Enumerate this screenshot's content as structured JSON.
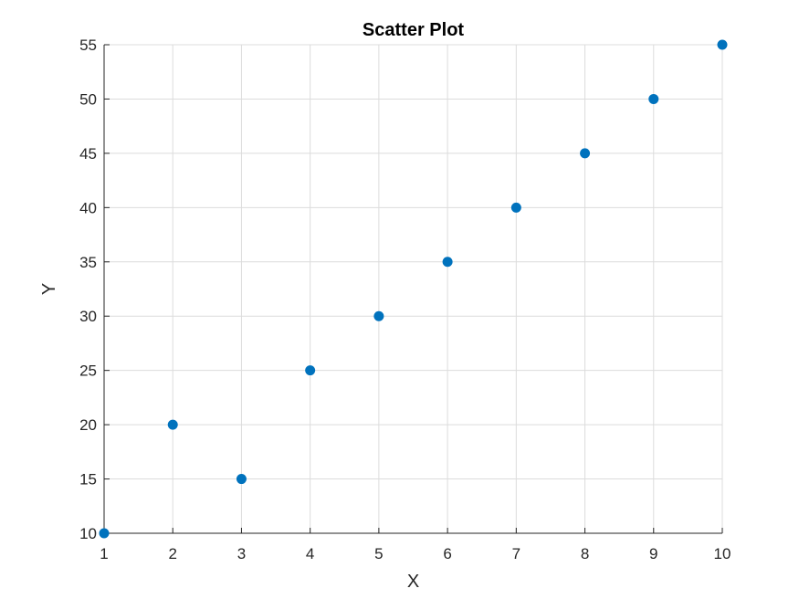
{
  "chart_data": {
    "type": "scatter",
    "title": "Scatter Plot",
    "xlabel": "X",
    "ylabel": "Y",
    "xlim": [
      1,
      10
    ],
    "ylim": [
      10,
      55
    ],
    "xticks": [
      1,
      2,
      3,
      4,
      5,
      6,
      7,
      8,
      9,
      10
    ],
    "yticks": [
      10,
      15,
      20,
      25,
      30,
      35,
      40,
      45,
      50,
      55
    ],
    "grid": true,
    "marker_color": "#0072BD",
    "series": [
      {
        "x": [
          1,
          2,
          3,
          4,
          5,
          6,
          7,
          8,
          9,
          10
        ],
        "y": [
          10,
          20,
          15,
          25,
          30,
          35,
          40,
          45,
          50,
          55
        ]
      }
    ]
  }
}
